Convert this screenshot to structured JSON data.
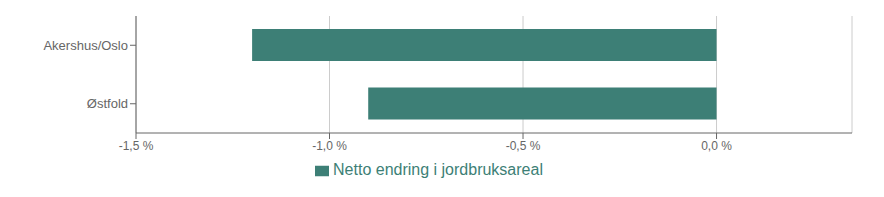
{
  "chart_data": {
    "type": "bar",
    "orientation": "horizontal",
    "categories": [
      "Akershus/Oslo",
      "Østfold"
    ],
    "series": [
      {
        "name": "Netto endring i jordbruksareal",
        "color": "#3d7f76",
        "values": [
          -1.2,
          -0.9
        ]
      }
    ],
    "xlim": [
      -1.5,
      0.35
    ],
    "xticks": [
      {
        "value": -1.5,
        "label": "-1,5 %"
      },
      {
        "value": -1.0,
        "label": "-1,0 %"
      },
      {
        "value": -0.5,
        "label": "-0,5 %"
      },
      {
        "value": 0.0,
        "label": "0,0 %"
      }
    ],
    "grid": true,
    "legend": "bottom"
  }
}
